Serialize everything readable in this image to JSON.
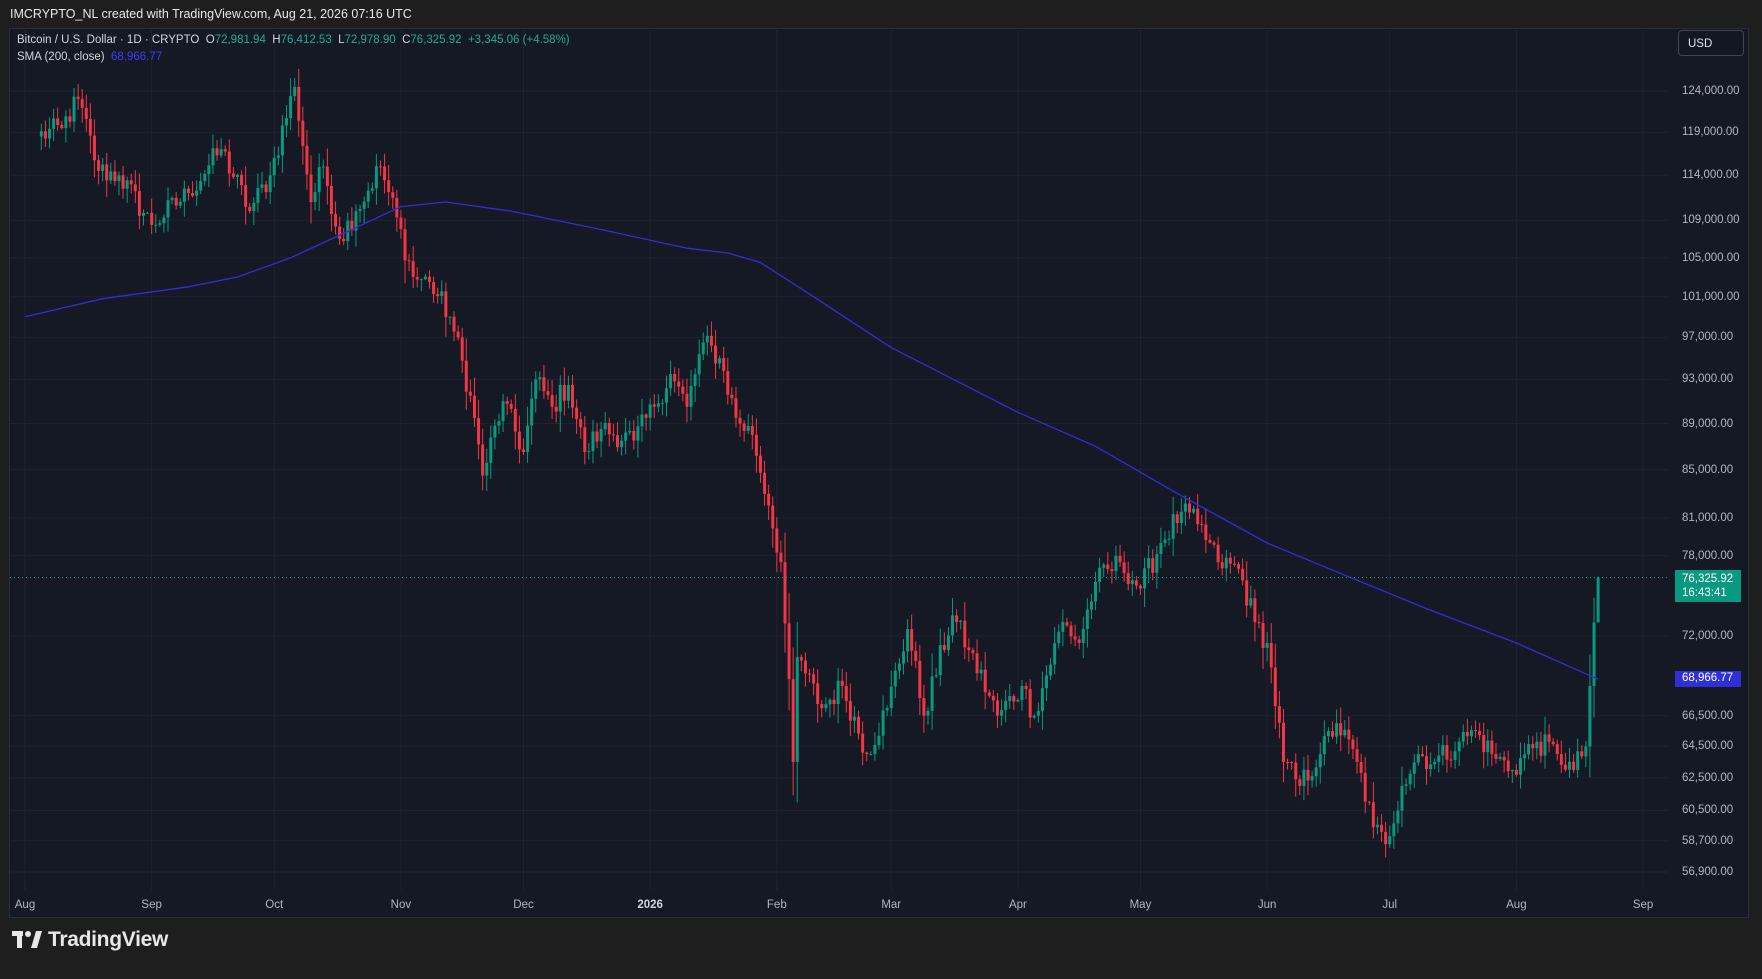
{
  "header": {
    "attribution": "IMCRYPTO_NL created with TradingView.com, Aug 21, 2026 07:16 UTC"
  },
  "legend": {
    "symbol": "Bitcoin / U.S. Dollar · 1D · CRYPTO",
    "open_label": "O",
    "open": "72,981.94",
    "high_label": "H",
    "high": "76,412.53",
    "low_label": "L",
    "low": "72,978.90",
    "close_label": "C",
    "close": "76,325.92",
    "change": "+3,345.06 (+4.58%)",
    "sma_label": "SMA (200, close)",
    "sma_value": "68,966.77"
  },
  "currency_button": "USD",
  "last_price_tag": {
    "price": "76,325.92",
    "countdown": "16:43:41"
  },
  "sma_tag": "68,966.77",
  "brand": {
    "name": "TradingView"
  },
  "colors": {
    "up": "#089981",
    "down": "#f23645",
    "sma": "#2f2fd8",
    "background": "#151924",
    "grid": "#1f2331"
  },
  "chart_data": {
    "type": "candlestick",
    "symbol": "Bitcoin / U.S. Dollar",
    "interval": "1D",
    "y_axis": {
      "scale": "log",
      "ticks": [
        "124,000.00",
        "119,000.00",
        "114,000.00",
        "109,000.00",
        "105,000.00",
        "101,000.00",
        "97,000.00",
        "93,000.00",
        "89,000.00",
        "85,000.00",
        "81,000.00",
        "78,000.00",
        "72,000.00",
        "66,500.00",
        "64,500.00",
        "62,500.00",
        "60,500.00",
        "58,700.00",
        "56,900.00"
      ]
    },
    "x_axis": {
      "ticks": [
        "Aug",
        "Sep",
        "Oct",
        "Nov",
        "Dec",
        "2026",
        "Feb",
        "Mar",
        "Apr",
        "May",
        "Jun",
        "Jul",
        "Aug",
        "Sep"
      ]
    },
    "anchors": [
      [
        "2025-08-04",
        118500
      ],
      [
        "2025-08-10",
        119500
      ],
      [
        "2025-08-14",
        123000
      ],
      [
        "2025-08-19",
        114500
      ],
      [
        "2025-08-24",
        114000
      ],
      [
        "2025-09-01",
        108500
      ],
      [
        "2025-09-10",
        112000
      ],
      [
        "2025-09-18",
        117000
      ],
      [
        "2025-09-25",
        110000
      ],
      [
        "2025-09-30",
        114000
      ],
      [
        "2025-10-06",
        124500
      ],
      [
        "2025-10-10",
        111000
      ],
      [
        "2025-10-13",
        115000
      ],
      [
        "2025-10-17",
        107000
      ],
      [
        "2025-10-21",
        110000
      ],
      [
        "2025-10-27",
        115000
      ],
      [
        "2025-11-04",
        103000
      ],
      [
        "2025-11-08",
        102500
      ],
      [
        "2025-11-13",
        99000
      ],
      [
        "2025-11-18",
        91500
      ],
      [
        "2025-11-21",
        84500
      ],
      [
        "2025-11-26",
        91000
      ],
      [
        "2025-12-01",
        86500
      ],
      [
        "2025-12-04",
        93000
      ],
      [
        "2025-12-08",
        90500
      ],
      [
        "2025-12-12",
        92500
      ],
      [
        "2025-12-16",
        86500
      ],
      [
        "2025-12-20",
        88500
      ],
      [
        "2025-12-28",
        87500
      ],
      [
        "2026-01-02",
        90500
      ],
      [
        "2026-01-06",
        93500
      ],
      [
        "2026-01-10",
        90500
      ],
      [
        "2026-01-14",
        96500
      ],
      [
        "2026-01-18",
        95000
      ],
      [
        "2026-01-22",
        89500
      ],
      [
        "2026-01-26",
        88000
      ],
      [
        "2026-01-30",
        82000
      ],
      [
        "2026-02-02",
        77500
      ],
      [
        "2026-02-05",
        63500
      ],
      [
        "2026-02-06",
        70500
      ],
      [
        "2026-02-12",
        67000
      ],
      [
        "2026-02-17",
        68500
      ],
      [
        "2026-02-23",
        64000
      ],
      [
        "2026-02-28",
        67000
      ],
      [
        "2026-03-05",
        72500
      ],
      [
        "2026-03-09",
        66500
      ],
      [
        "2026-03-16",
        73500
      ],
      [
        "2026-03-20",
        71000
      ],
      [
        "2026-03-27",
        66500
      ],
      [
        "2026-04-02",
        68500
      ],
      [
        "2026-04-05",
        66500
      ],
      [
        "2026-04-12",
        73000
      ],
      [
        "2026-04-16",
        71500
      ],
      [
        "2026-04-20",
        76000
      ],
      [
        "2026-04-26",
        77500
      ],
      [
        "2026-05-01",
        75500
      ],
      [
        "2026-05-06",
        79000
      ],
      [
        "2026-05-11",
        81500
      ],
      [
        "2026-05-15",
        80500
      ],
      [
        "2026-05-20",
        77500
      ],
      [
        "2026-05-25",
        77000
      ],
      [
        "2026-05-29",
        73000
      ],
      [
        "2026-06-01",
        71500
      ],
      [
        "2026-06-05",
        63500
      ],
      [
        "2026-06-09",
        62000
      ],
      [
        "2026-06-14",
        64000
      ],
      [
        "2026-06-18",
        66000
      ],
      [
        "2026-06-23",
        63500
      ],
      [
        "2026-06-27",
        59500
      ],
      [
        "2026-06-30",
        58500
      ],
      [
        "2026-07-04",
        62000
      ],
      [
        "2026-07-08",
        64000
      ],
      [
        "2026-07-12",
        63500
      ],
      [
        "2026-07-18",
        64800
      ],
      [
        "2026-07-22",
        65500
      ],
      [
        "2026-07-26",
        64000
      ],
      [
        "2026-07-31",
        63000
      ],
      [
        "2026-08-06",
        64800
      ],
      [
        "2026-08-11",
        64000
      ],
      [
        "2026-08-15",
        63000
      ],
      [
        "2026-08-18",
        64500
      ],
      [
        "2026-08-19",
        68500
      ],
      [
        "2026-08-20",
        72981.94
      ],
      [
        "2026-08-21",
        76325.92
      ]
    ],
    "last_candle": {
      "date": "2026-08-21",
      "open": 72981.94,
      "high": 76412.53,
      "low": 72978.9,
      "close": 76325.92
    },
    "sma_200": {
      "name": "SMA (200, close)",
      "points": [
        [
          "2025-08-01",
          99000
        ],
        [
          "2025-08-20",
          100800
        ],
        [
          "2025-09-10",
          102000
        ],
        [
          "2025-09-22",
          103000
        ],
        [
          "2025-10-05",
          105000
        ],
        [
          "2025-10-20",
          108000
        ],
        [
          "2025-11-01",
          110500
        ],
        [
          "2025-11-12",
          111000
        ],
        [
          "2025-11-28",
          110000
        ],
        [
          "2025-12-20",
          108000
        ],
        [
          "2026-01-10",
          106000
        ],
        [
          "2026-01-20",
          105500
        ],
        [
          "2026-01-28",
          104500
        ],
        [
          "2026-02-10",
          101000
        ],
        [
          "2026-03-01",
          96000
        ],
        [
          "2026-04-01",
          90000
        ],
        [
          "2026-04-20",
          87000
        ],
        [
          "2026-05-10",
          83000
        ],
        [
          "2026-06-01",
          79000
        ],
        [
          "2026-06-20",
          76500
        ],
        [
          "2026-07-10",
          74000
        ],
        [
          "2026-08-01",
          71500
        ],
        [
          "2026-08-21",
          68966.77
        ]
      ]
    }
  }
}
